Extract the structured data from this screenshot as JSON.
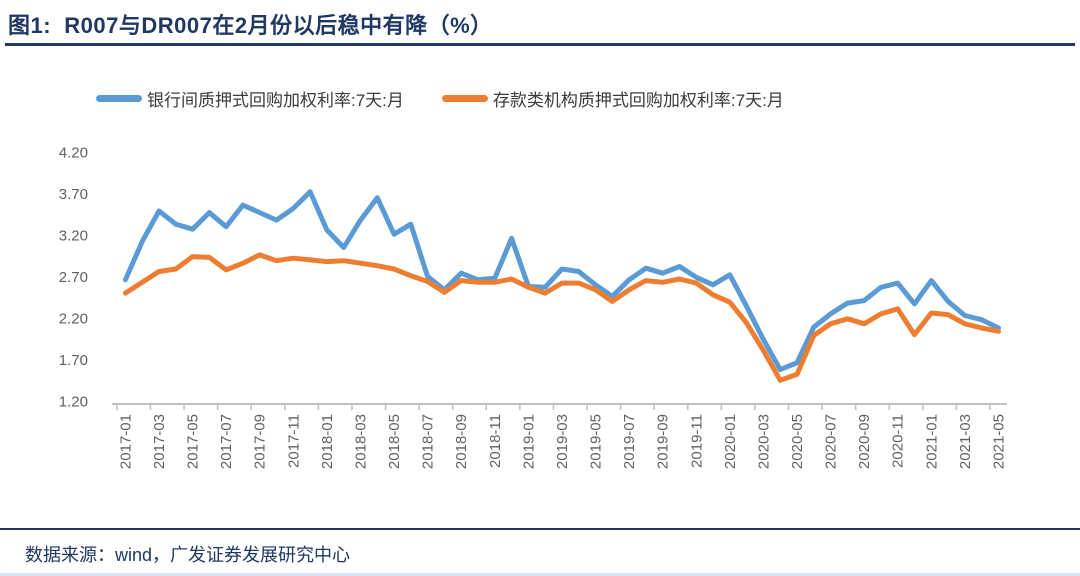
{
  "figure": {
    "title": "图1:  R007与DR007在2月份以后稳中有降（%）",
    "source": "数据来源：wind，广发证券发展研究中心",
    "title_color": "#1F3864"
  },
  "legend": [
    {
      "label": "银行间质押式回购加权利率:7天:月",
      "color": "#5B9BD5"
    },
    {
      "label": "存款类机构质押式回购加权利率:7天:月",
      "color": "#ED7D31"
    }
  ],
  "chart_data": {
    "type": "line",
    "title": "图1:  R007与DR007在2月份以后稳中有降（%）",
    "ylabel": "",
    "xlabel": "",
    "ylim": [
      1.2,
      4.2
    ],
    "ytick_step": 0.5,
    "yticks": [
      "4.20",
      "3.70",
      "3.20",
      "2.70",
      "2.20",
      "1.70",
      "1.20"
    ],
    "grid": false,
    "legend_position": "top",
    "x_label_every": 2,
    "x": [
      "2017-01",
      "2017-02",
      "2017-03",
      "2017-04",
      "2017-05",
      "2017-06",
      "2017-07",
      "2017-08",
      "2017-09",
      "2017-10",
      "2017-11",
      "2017-12",
      "2018-01",
      "2018-02",
      "2018-03",
      "2018-04",
      "2018-05",
      "2018-06",
      "2018-07",
      "2018-08",
      "2018-09",
      "2018-10",
      "2018-11",
      "2018-12",
      "2019-01",
      "2019-02",
      "2019-03",
      "2019-04",
      "2019-05",
      "2019-06",
      "2019-07",
      "2019-08",
      "2019-09",
      "2019-10",
      "2019-11",
      "2019-12",
      "2020-01",
      "2020-02",
      "2020-03",
      "2020-04",
      "2020-05",
      "2020-06",
      "2020-07",
      "2020-08",
      "2020-09",
      "2020-10",
      "2020-11",
      "2020-12",
      "2021-01",
      "2021-02",
      "2021-03",
      "2021-04",
      "2021-05"
    ],
    "series": [
      {
        "name": "银行间质押式回购加权利率:7天:月",
        "color": "#5B9BD5",
        "values": [
          2.66,
          3.12,
          3.49,
          3.33,
          3.27,
          3.47,
          3.3,
          3.56,
          3.47,
          3.38,
          3.52,
          3.72,
          3.26,
          3.05,
          3.38,
          3.65,
          3.21,
          3.33,
          2.7,
          2.54,
          2.74,
          2.66,
          2.68,
          3.16,
          2.58,
          2.57,
          2.79,
          2.76,
          2.6,
          2.46,
          2.66,
          2.8,
          2.74,
          2.82,
          2.69,
          2.6,
          2.72,
          2.34,
          1.94,
          1.58,
          1.66,
          2.09,
          2.25,
          2.38,
          2.41,
          2.57,
          2.62,
          2.37,
          2.65,
          2.4,
          2.23,
          2.18,
          2.08
        ]
      },
      {
        "name": "存款类机构质押式回购加权利率:7天:月",
        "color": "#ED7D31",
        "values": [
          2.5,
          2.63,
          2.76,
          2.79,
          2.94,
          2.93,
          2.78,
          2.86,
          2.96,
          2.89,
          2.92,
          2.9,
          2.88,
          2.89,
          2.86,
          2.83,
          2.79,
          2.71,
          2.64,
          2.51,
          2.65,
          2.63,
          2.63,
          2.67,
          2.57,
          2.5,
          2.62,
          2.62,
          2.54,
          2.4,
          2.54,
          2.65,
          2.63,
          2.67,
          2.62,
          2.48,
          2.39,
          2.14,
          1.81,
          1.45,
          1.52,
          1.99,
          2.13,
          2.19,
          2.13,
          2.25,
          2.31,
          2.0,
          2.26,
          2.24,
          2.13,
          2.08,
          2.04
        ]
      }
    ],
    "style": {
      "axis_color": "#BFBFBF",
      "tick_label_color": "#616161",
      "line_width": 5
    }
  }
}
